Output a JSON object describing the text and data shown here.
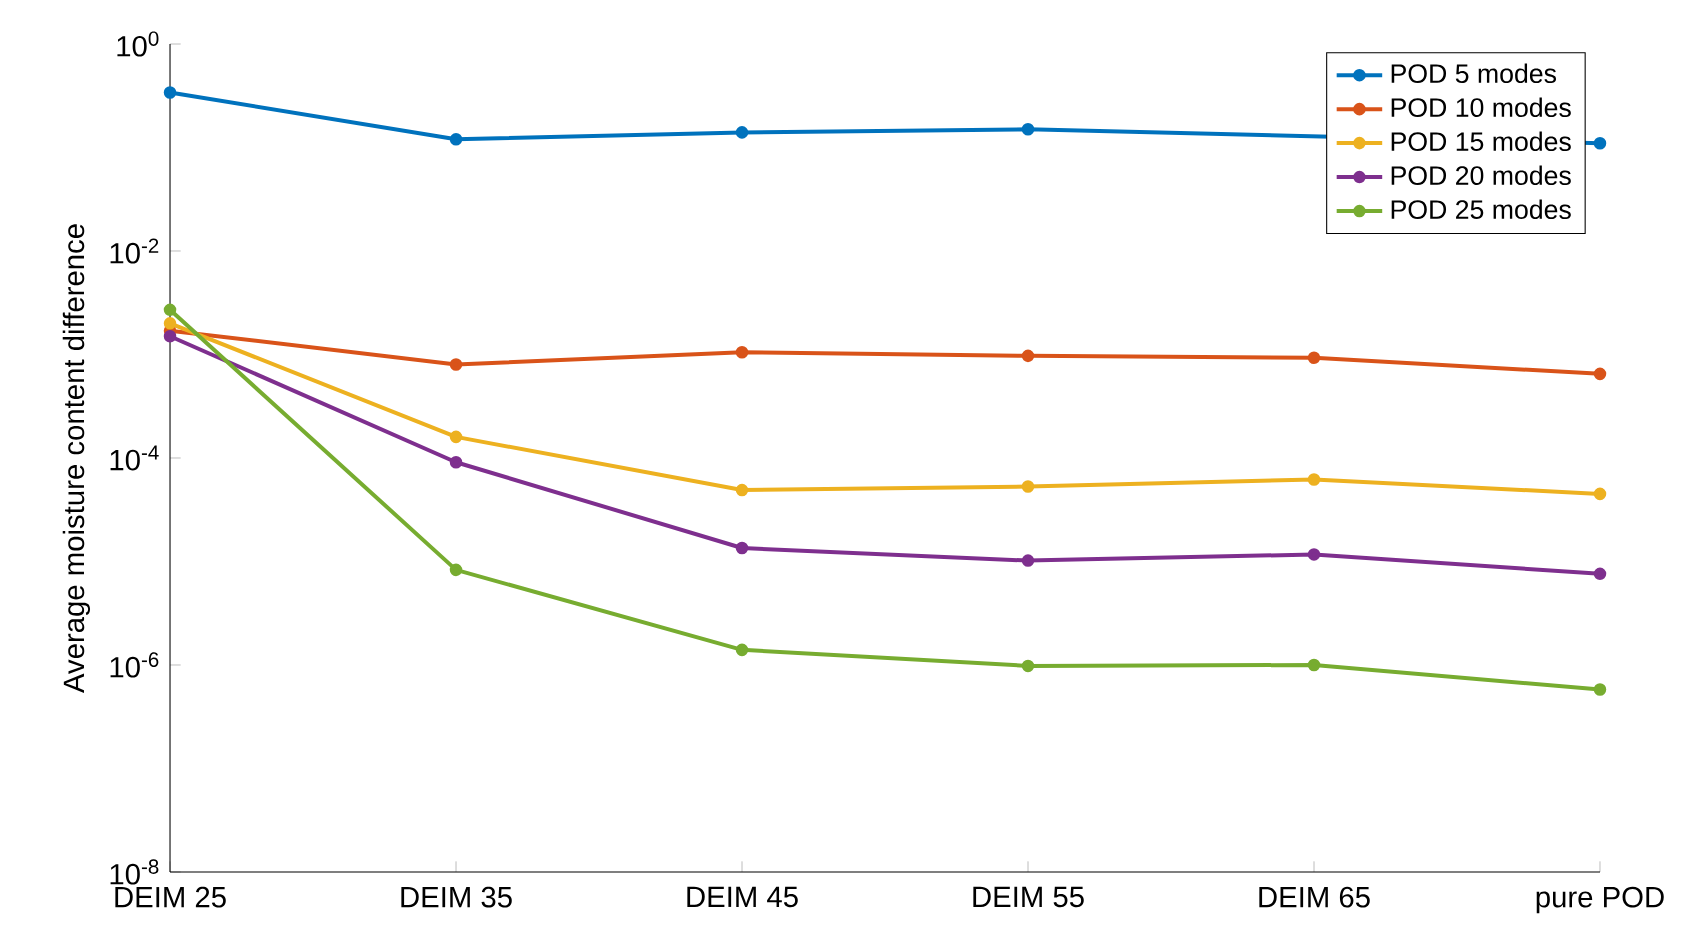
{
  "chart_data": {
    "type": "line",
    "ylabel": "Average moisture content difference",
    "categories": [
      "DEIM 25",
      "DEIM 35",
      "DEIM 45",
      "DEIM 55",
      "DEIM 65",
      "pure POD"
    ],
    "series": [
      {
        "name": "POD 5 modes",
        "color": "#0072bd",
        "values": [
          0.34,
          0.12,
          0.14,
          0.15,
          null,
          0.11
        ]
      },
      {
        "name": "POD 10 modes",
        "color": "#d95319",
        "values": [
          0.0017,
          0.0008,
          0.00105,
          0.00097,
          0.00093,
          0.00065
        ]
      },
      {
        "name": "POD 15 modes",
        "color": "#edb120",
        "values": [
          0.002,
          0.00016,
          4.9e-05,
          5.3e-05,
          6.2e-05,
          4.5e-05
        ]
      },
      {
        "name": "POD 20 modes",
        "color": "#7e2f8e",
        "values": [
          0.0015,
          9.1e-05,
          1.35e-05,
          1.02e-05,
          1.17e-05,
          7.6e-06
        ]
      },
      {
        "name": "POD 25 modes",
        "color": "#77ac30",
        "values": [
          0.0027,
          8.3e-06,
          1.4e-06,
          9.8e-07,
          1e-06,
          5.8e-07
        ]
      }
    ],
    "log": "y",
    "ylim": [
      1e-08,
      1
    ],
    "yticks": [
      {
        "value": 1e-08,
        "label": "10$^{-8}$"
      },
      {
        "value": 1e-06,
        "label": "10$^{-6}$"
      },
      {
        "value": 0.0001,
        "label": "10$^{-4}$"
      },
      {
        "value": 0.01,
        "label": "10$^{-2}$"
      },
      {
        "value": 1,
        "label": "10$^{0}$"
      }
    ],
    "legend": "top right",
    "marker": "circle",
    "line_style": "solid"
  }
}
